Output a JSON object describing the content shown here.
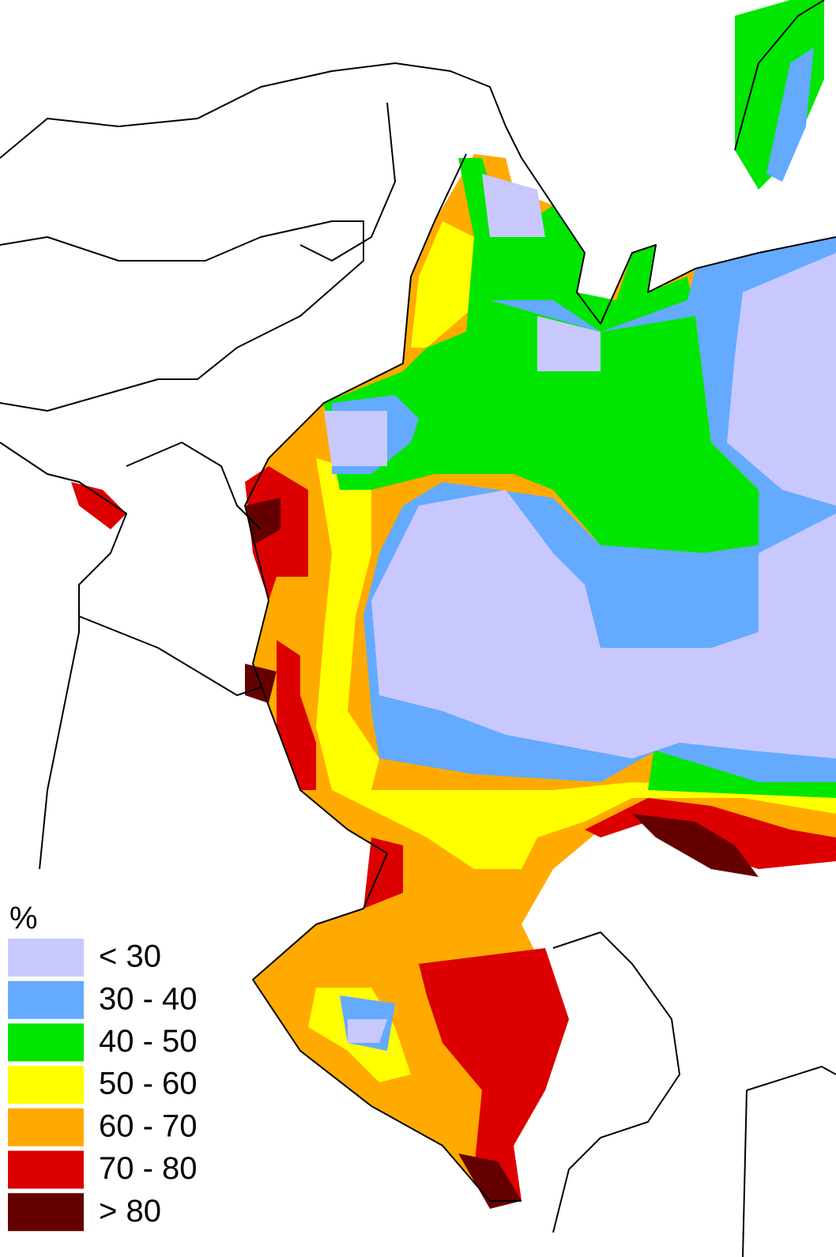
{
  "legend": {
    "title": "%",
    "items": [
      {
        "label": "< 30",
        "color": "#c8c8ff"
      },
      {
        "label": "30 - 40",
        "color": "#64aaff"
      },
      {
        "label": "40 - 50",
        "color": "#00e600"
      },
      {
        "label": "50 - 60",
        "color": "#ffff00"
      },
      {
        "label": "60 - 70",
        "color": "#ffaa00"
      },
      {
        "label": "70 - 80",
        "color": "#dc0000"
      },
      {
        "label": "> 80",
        "color": "#640000"
      }
    ]
  }
}
